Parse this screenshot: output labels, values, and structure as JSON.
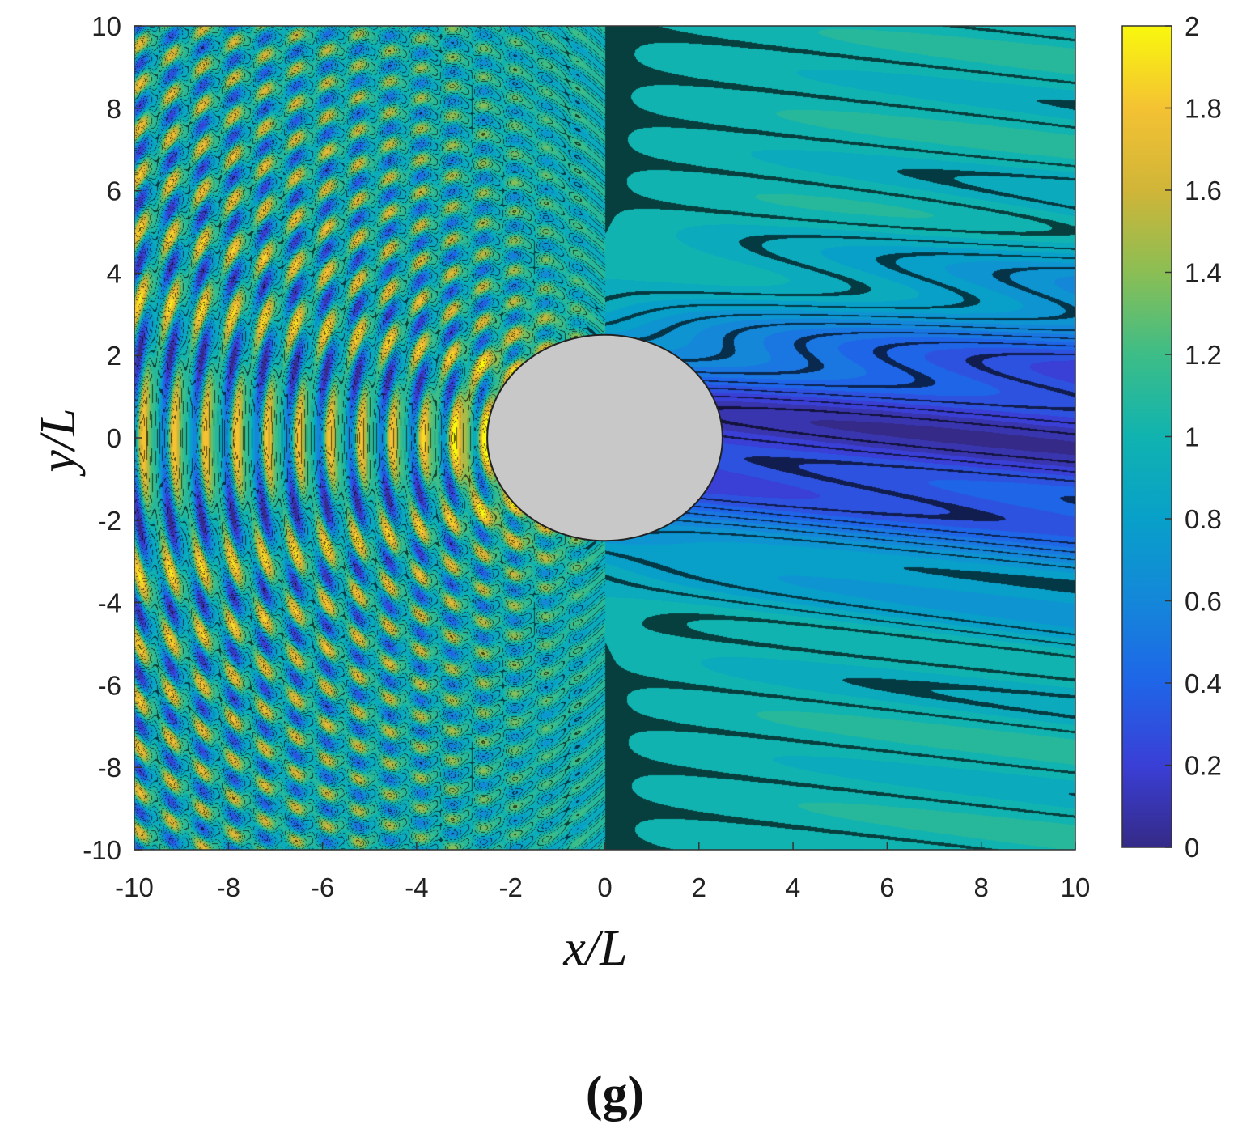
{
  "chart_data": {
    "type": "heatmap",
    "title": "",
    "xlabel": "x/L",
    "ylabel": "y/L",
    "caption": "(g)",
    "xlim": [
      -10,
      10
    ],
    "ylim": [
      -10,
      10
    ],
    "x_ticks": [
      "-10",
      "-8",
      "-6",
      "-4",
      "-2",
      "0",
      "2",
      "4",
      "6",
      "8",
      "10"
    ],
    "y_ticks": [
      "10",
      "8",
      "6",
      "4",
      "2",
      "0",
      "-2",
      "-4",
      "-6",
      "-8",
      "-10"
    ],
    "x_tick_values": [
      -10,
      -8,
      -6,
      -4,
      -2,
      0,
      2,
      4,
      6,
      8,
      10
    ],
    "y_tick_values": [
      10,
      8,
      6,
      4,
      2,
      0,
      -2,
      -4,
      -6,
      -8,
      -10
    ],
    "colorbar": {
      "range": [
        0,
        2
      ],
      "ticks": [
        "2",
        "1.8",
        "1.6",
        "1.4",
        "1.2",
        "1",
        "0.8",
        "0.6",
        "0.4",
        "0.2",
        "0"
      ],
      "tick_values": [
        2,
        1.8,
        1.6,
        1.4,
        1.2,
        1,
        0.8,
        0.6,
        0.4,
        0.2,
        0
      ],
      "colormap": "parula"
    },
    "obstacle": {
      "shape": "ellipse",
      "center": [
        0,
        0
      ],
      "semi_axis_x": 2.5,
      "semi_axis_y": 2.5,
      "color": "#c8c8c8"
    },
    "grid": false,
    "legend": "none"
  }
}
